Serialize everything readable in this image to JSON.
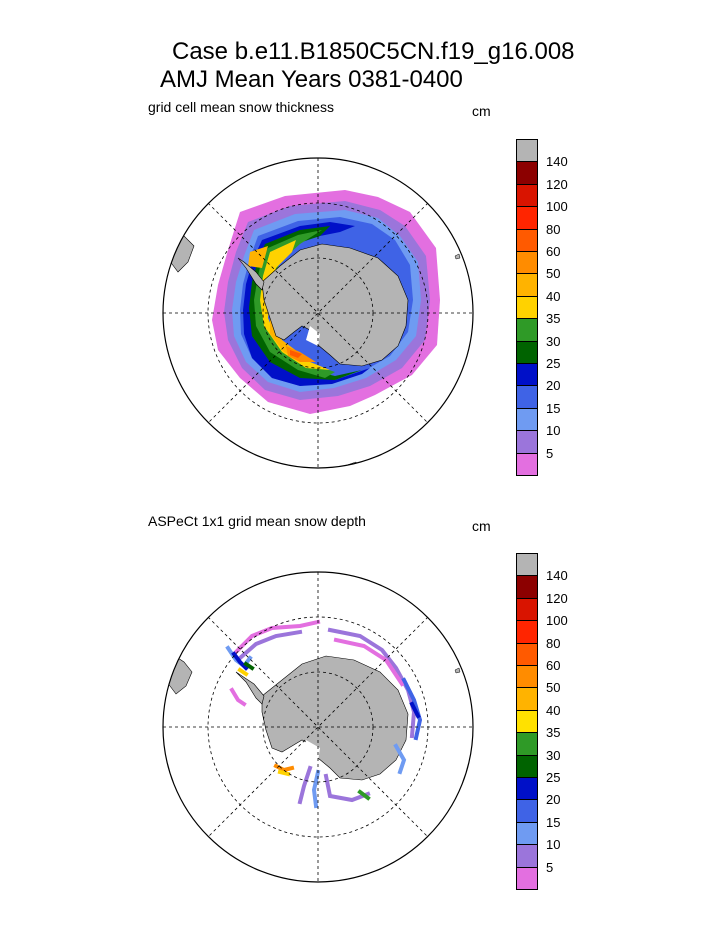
{
  "title_line1": "Case b.e11.B1850C5CN.f19_g16.008",
  "title_line2": "AMJ Mean   Years 0381-0400",
  "chart_data": [
    {
      "type": "heatmap",
      "title": "grid cell mean snow thickness",
      "units": "cm",
      "projection": "south polar stereographic",
      "colorbar": {
        "colors": [
          "#e36fe0",
          "#9b75db",
          "#6f9bf2",
          "#3f63e6",
          "#0010c8",
          "#006300",
          "#2f9a27",
          "#ffd200",
          "#ffb300",
          "#ff8c00",
          "#ff5a00",
          "#ff2500",
          "#d91400",
          "#8c0000",
          "#b4b4b4"
        ],
        "tick_labels": [
          "5",
          "10",
          "15",
          "20",
          "25",
          "30",
          "35",
          "40",
          "50",
          "60",
          "80",
          "100",
          "120",
          "140"
        ]
      }
    },
    {
      "type": "heatmap",
      "title": "ASPeCt 1x1 grid mean snow depth",
      "units": "cm",
      "projection": "south polar stereographic",
      "colorbar": {
        "colors": [
          "#e36fe0",
          "#9b75db",
          "#6f9bf2",
          "#3f63e6",
          "#0010c8",
          "#006300",
          "#2f9a27",
          "#ffe100",
          "#ffb300",
          "#ff8c00",
          "#ff5a00",
          "#ff2500",
          "#d91400",
          "#8c0000",
          "#b4b4b4"
        ],
        "tick_labels": [
          "5",
          "10",
          "15",
          "20",
          "25",
          "30",
          "35",
          "40",
          "50",
          "60",
          "80",
          "100",
          "120",
          "140"
        ]
      }
    }
  ]
}
